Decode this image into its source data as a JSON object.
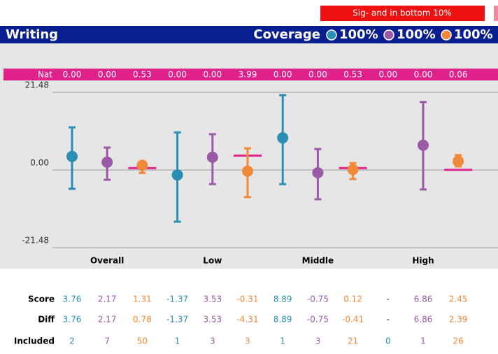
{
  "chart_data": {
    "type": "errorbar",
    "sig_legend": "Sig- and in bottom 10%",
    "title": "Writing",
    "coverage_label": "Coverage",
    "nat_label": "Nat",
    "nat": [
      {
        "value": 0,
        "label": "0.00"
      },
      {
        "value": 0,
        "label": "0.00"
      },
      {
        "value": 0.53,
        "label": "0.53"
      },
      {
        "value": 0,
        "label": "0.00"
      },
      {
        "value": 0,
        "label": "0.00"
      },
      {
        "value": 3.99,
        "label": "3.99"
      },
      {
        "value": 0,
        "label": "0.00"
      },
      {
        "value": 0,
        "label": "0.00"
      },
      {
        "value": 0.53,
        "label": "0.53"
      },
      {
        "value": 0,
        "label": "0.00"
      },
      {
        "value": 0,
        "label": "0.00"
      },
      {
        "value": 0.06,
        "label": "0.06"
      }
    ],
    "nat_color": "#e0218a",
    "categories": [
      "Overall",
      "Low",
      "Middle",
      "High"
    ],
    "ylim": [
      -23.8,
      23.8
    ],
    "yticks": [
      21.48,
      {
        "value": 0,
        "label": "0.00"
      },
      -21.48
    ],
    "row_labels": [
      "Score",
      "Diff",
      "Included"
    ],
    "series": [
      {
        "color": "#2a8fb5",
        "coverage": "100%",
        "values": [
          3.76,
          -1.37,
          8.89,
          null
        ],
        "value_labels": [
          "3.76",
          "-1.37",
          "8.89",
          "-"
        ],
        "lower": [
          -5.2,
          -14.3,
          -3.9,
          null
        ],
        "upper": [
          11.8,
          10.4,
          20.7,
          null
        ],
        "diffs": [
          "3.76",
          "-1.37",
          "8.89",
          "-"
        ],
        "included": [
          2,
          1,
          1,
          0
        ]
      },
      {
        "color": "#9b5aa8",
        "coverage": "100%",
        "values": [
          2.17,
          3.53,
          -0.75,
          6.86
        ],
        "value_labels": [
          "2.17",
          "3.53",
          "-0.75",
          "6.86"
        ],
        "lower": [
          -2.7,
          -3.9,
          -8.1,
          -5.4
        ],
        "upper": [
          6.2,
          9.9,
          5.8,
          18.8
        ],
        "diffs": [
          "2.17",
          "3.53",
          "-0.75",
          "6.86"
        ],
        "included": [
          7,
          3,
          3,
          1
        ]
      },
      {
        "color": "#f0883a",
        "coverage": "100%",
        "values": [
          1.31,
          -0.31,
          0.12,
          2.45
        ],
        "value_labels": [
          "1.31",
          "-0.31",
          "0.12",
          "2.45"
        ],
        "lower": [
          -0.8,
          -7.5,
          -2.5,
          1.0
        ],
        "upper": [
          2.1,
          6.0,
          1.9,
          4.1
        ],
        "diffs": [
          "0.78",
          "-4.31",
          "-0.41",
          "2.39"
        ],
        "included": [
          50,
          3,
          21,
          26
        ]
      }
    ]
  }
}
